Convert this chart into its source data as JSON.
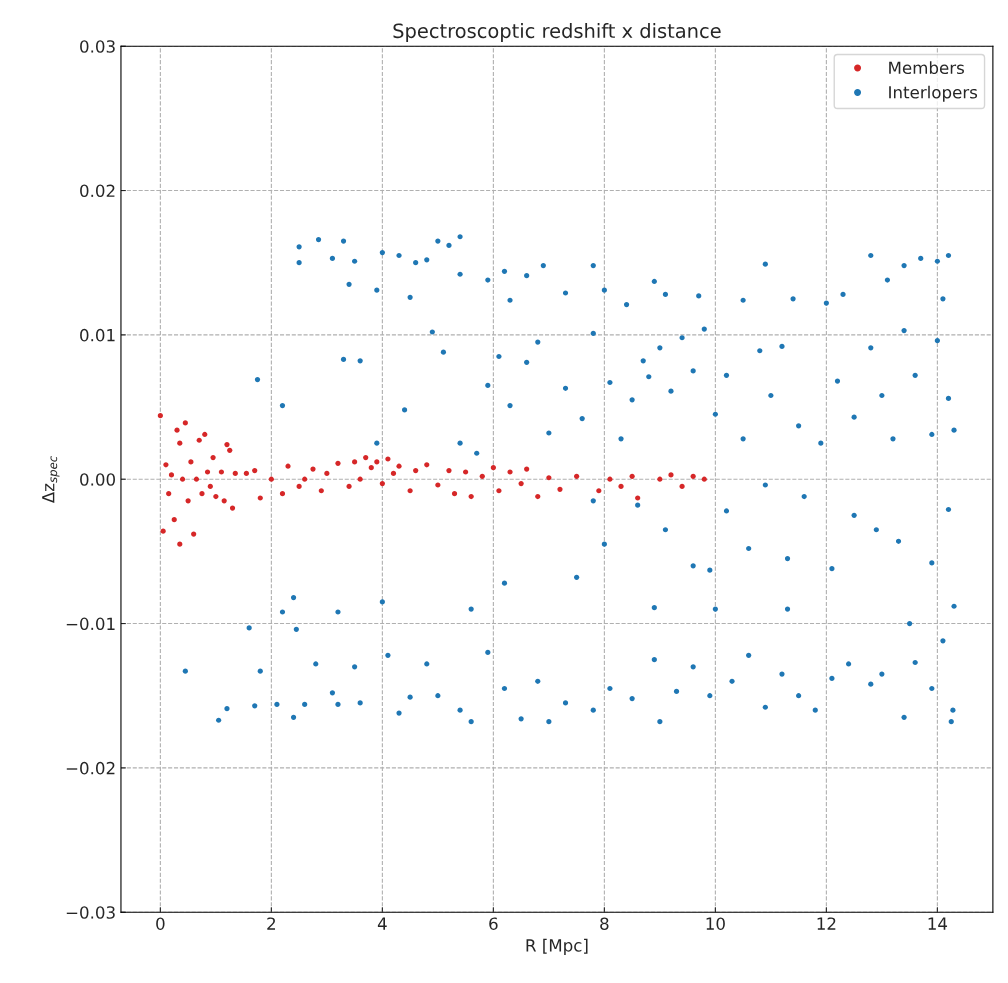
{
  "chart_data": {
    "type": "scatter",
    "title": "Spectroscoptic redshift x distance",
    "xlabel": "R [Mpc]",
    "ylabel": "Δz$_{spec}$",
    "xlim": [
      -0.71,
      15.0
    ],
    "ylim": [
      -0.03,
      0.03
    ],
    "xticks": [
      0,
      2,
      4,
      6,
      8,
      10,
      12,
      14
    ],
    "yticks": [
      0.03,
      0.02,
      0.01,
      {
        "value": 0,
        "label": "0.00"
      },
      {
        "value": -0.01,
        "label": "−0.01"
      },
      {
        "value": -0.02,
        "label": "−0.02"
      },
      {
        "value": -0.03,
        "label": "−0.03"
      }
    ],
    "grid": true,
    "legend": "top right",
    "marker": "circle",
    "series": [
      {
        "name": "Members",
        "color": "#d62728",
        "x": [
          0.0,
          0.05,
          0.1,
          0.15,
          0.2,
          0.25,
          0.3,
          0.35,
          0.35,
          0.4,
          0.45,
          0.5,
          0.55,
          0.6,
          0.65,
          0.7,
          0.75,
          0.8,
          0.85,
          0.9,
          0.95,
          1.0,
          1.1,
          1.15,
          1.2,
          1.25,
          1.3,
          1.35,
          1.55,
          1.7,
          1.8,
          2.0,
          2.2,
          2.3,
          2.5,
          2.6,
          2.75,
          2.9,
          3.0,
          3.2,
          3.4,
          3.5,
          3.6,
          3.7,
          3.8,
          3.9,
          4.0,
          4.1,
          4.2,
          4.3,
          4.5,
          4.6,
          4.8,
          5.0,
          5.2,
          5.3,
          5.5,
          5.6,
          5.8,
          6.0,
          6.1,
          6.3,
          6.5,
          6.6,
          6.8,
          7.0,
          7.2,
          7.5,
          7.9,
          8.1,
          8.3,
          8.5,
          8.6,
          9.0,
          9.2,
          9.4,
          9.6,
          9.8
        ],
        "values": [
          0.0044,
          -0.0036,
          0.001,
          -0.001,
          0.0003,
          -0.0028,
          0.0034,
          0.0025,
          -0.0045,
          0.0,
          0.0039,
          -0.0015,
          0.0012,
          -0.0038,
          0.0,
          0.0027,
          -0.001,
          0.0031,
          0.0005,
          -0.0005,
          0.0015,
          -0.0012,
          0.0005,
          -0.0015,
          0.0024,
          0.002,
          -0.002,
          0.0004,
          0.0004,
          0.0006,
          -0.0013,
          0.0,
          -0.001,
          0.0009,
          -0.0005,
          0.0,
          0.0007,
          -0.0008,
          0.0004,
          0.0011,
          -0.0005,
          0.0012,
          0.0,
          0.0015,
          0.0008,
          0.0012,
          -0.0003,
          0.0014,
          0.0004,
          0.0009,
          -0.0008,
          0.0006,
          0.001,
          -0.0004,
          0.0006,
          -0.001,
          0.0005,
          -0.0012,
          0.0002,
          0.0008,
          -0.0008,
          0.0005,
          -0.0003,
          0.0007,
          -0.0012,
          0.0001,
          -0.0007,
          0.0002,
          -0.0008,
          0.0,
          -0.0005,
          0.0002,
          -0.0013,
          0.0,
          0.0003,
          -0.0005,
          0.0002,
          0.0
        ]
      },
      {
        "name": "Interlopers",
        "color": "#1f77b4",
        "x": [
          2.5,
          2.5,
          2.85,
          3.1,
          3.3,
          3.4,
          3.5,
          3.9,
          4.0,
          4.3,
          4.5,
          4.6,
          4.8,
          5.0,
          5.2,
          5.4,
          5.4,
          5.9,
          6.2,
          6.3,
          6.6,
          6.9,
          7.3,
          7.8,
          8.0,
          8.4,
          8.9,
          9.1,
          9.7,
          10.5,
          10.9,
          11.4,
          12.0,
          12.3,
          12.8,
          13.1,
          13.4,
          13.7,
          14.0,
          14.2,
          14.1,
          1.75,
          2.2,
          3.3,
          3.6,
          3.9,
          4.4,
          4.9,
          5.1,
          5.4,
          5.7,
          5.9,
          6.1,
          6.3,
          6.6,
          6.8,
          7.0,
          7.3,
          7.6,
          7.8,
          8.1,
          8.3,
          8.5,
          8.7,
          8.8,
          9.0,
          9.2,
          9.4,
          9.6,
          9.8,
          10.0,
          10.2,
          10.5,
          10.8,
          11.0,
          11.2,
          11.5,
          11.9,
          12.2,
          12.5,
          12.8,
          13.0,
          13.2,
          13.4,
          13.6,
          13.9,
          14.0,
          14.2,
          14.3,
          7.8,
          8.0,
          8.6,
          9.1,
          9.6,
          9.9,
          10.2,
          10.6,
          10.9,
          11.3,
          11.6,
          12.1,
          12.5,
          12.9,
          13.3,
          13.5,
          13.9,
          14.2,
          14.3,
          6.2,
          7.5,
          5.6,
          4.0,
          3.2,
          2.4,
          2.2,
          8.9,
          10.0,
          11.3,
          0.45,
          1.05,
          1.2,
          1.6,
          1.7,
          1.8,
          2.1,
          2.4,
          2.45,
          2.6,
          2.8,
          3.1,
          3.2,
          3.5,
          3.6,
          4.1,
          4.3,
          4.5,
          4.8,
          5.0,
          5.4,
          5.6,
          5.9,
          6.2,
          6.5,
          6.8,
          7.0,
          7.3,
          7.8,
          8.1,
          8.5,
          8.9,
          9.0,
          9.3,
          9.6,
          9.9,
          10.3,
          10.6,
          10.9,
          11.2,
          11.5,
          11.8,
          12.1,
          12.4,
          12.8,
          13.0,
          13.4,
          13.6,
          13.9,
          14.1,
          14.25,
          14.28
        ],
        "values": [
          0.0161,
          0.015,
          0.0166,
          0.0153,
          0.0165,
          0.0135,
          0.0151,
          0.0131,
          0.0157,
          0.0155,
          0.0126,
          0.015,
          0.0152,
          0.0165,
          0.0162,
          0.0168,
          0.0142,
          0.0138,
          0.0144,
          0.0124,
          0.0141,
          0.0148,
          0.0129,
          0.0148,
          0.0131,
          0.0121,
          0.0137,
          0.0128,
          0.0127,
          0.0124,
          0.0149,
          0.0125,
          0.0122,
          0.0128,
          0.0155,
          0.0138,
          0.0148,
          0.0153,
          0.0151,
          0.0155,
          0.0125,
          0.0069,
          0.0051,
          0.0083,
          0.0082,
          0.0025,
          0.0048,
          0.0102,
          0.0088,
          0.0025,
          0.0018,
          0.0065,
          0.0085,
          0.0051,
          0.0081,
          0.0095,
          0.0032,
          0.0063,
          0.0042,
          0.0101,
          0.0067,
          0.0028,
          0.0055,
          0.0082,
          0.0071,
          0.0091,
          0.0061,
          0.0098,
          0.0075,
          0.0104,
          0.0045,
          0.0072,
          0.0028,
          0.0089,
          0.0058,
          0.0092,
          0.0037,
          0.0025,
          0.0068,
          0.0043,
          0.0091,
          0.0058,
          0.0028,
          0.0103,
          0.0072,
          0.0031,
          0.0096,
          0.0056,
          0.0034,
          -0.0015,
          -0.0045,
          -0.0018,
          -0.0035,
          -0.006,
          -0.0063,
          -0.0022,
          -0.0048,
          -0.0004,
          -0.0055,
          -0.0012,
          -0.0062,
          -0.0025,
          -0.0035,
          -0.0043,
          -0.01,
          -0.0058,
          -0.0021,
          -0.0088,
          -0.0072,
          -0.0068,
          -0.009,
          -0.0085,
          -0.0092,
          -0.0082,
          -0.0092,
          -0.0089,
          -0.009,
          -0.009,
          -0.0133,
          -0.0167,
          -0.0159,
          -0.0103,
          -0.0157,
          -0.0133,
          -0.0156,
          -0.0165,
          -0.0104,
          -0.0156,
          -0.0128,
          -0.0148,
          -0.0156,
          -0.013,
          -0.0155,
          -0.0122,
          -0.0162,
          -0.0151,
          -0.0128,
          -0.015,
          -0.016,
          -0.0168,
          -0.012,
          -0.0145,
          -0.0166,
          -0.014,
          -0.0168,
          -0.0155,
          -0.016,
          -0.0145,
          -0.0152,
          -0.0125,
          -0.0168,
          -0.0147,
          -0.013,
          -0.015,
          -0.014,
          -0.0122,
          -0.0158,
          -0.0135,
          -0.015,
          -0.016,
          -0.0138,
          -0.0128,
          -0.0142,
          -0.0135,
          -0.0165,
          -0.0127,
          -0.0145,
          -0.0112,
          -0.0168,
          -0.016
        ]
      }
    ]
  }
}
